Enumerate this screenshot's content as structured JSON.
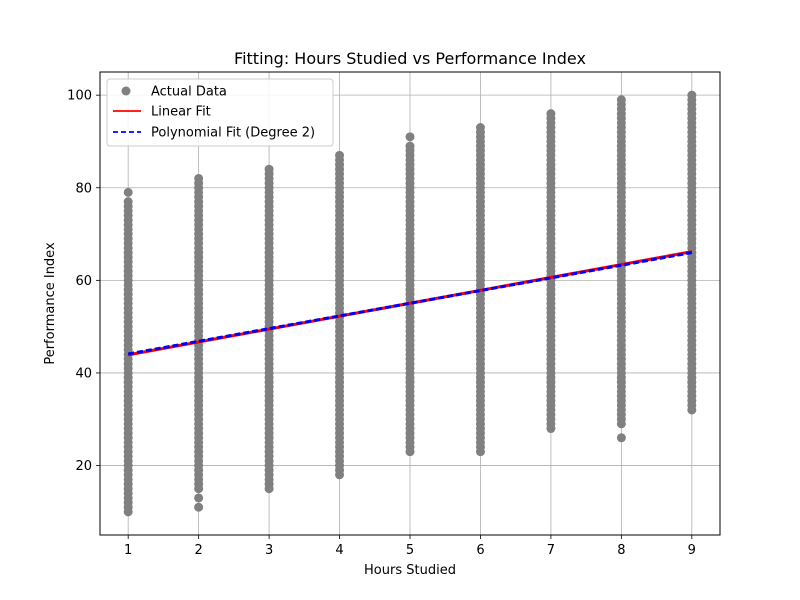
{
  "chart_data": {
    "type": "scatter",
    "title": "Fitting: Hours Studied vs Performance Index",
    "xlabel": "Hours Studied",
    "ylabel": "Performance Index",
    "xlim": [
      0.6,
      9.4
    ],
    "ylim": [
      5,
      105
    ],
    "x_ticks": [
      1,
      2,
      3,
      4,
      5,
      6,
      7,
      8,
      9
    ],
    "y_ticks": [
      20,
      40,
      60,
      80,
      100
    ],
    "grid": true,
    "legend_position": "top-left",
    "colors": {
      "points": "#808080",
      "linear": "#ff0000",
      "poly": "#0000ff",
      "grid": "#b0b0b0"
    },
    "series": [
      {
        "name": "Actual Data",
        "kind": "scatter-range",
        "columns": [
          {
            "x": 1,
            "y_min": 10,
            "y_max": 77,
            "outliers": [
              79
            ]
          },
          {
            "x": 2,
            "y_min": 15,
            "y_max": 82,
            "outliers": [
              11,
              13
            ]
          },
          {
            "x": 3,
            "y_min": 15,
            "y_max": 84,
            "outliers": []
          },
          {
            "x": 4,
            "y_min": 18,
            "y_max": 87,
            "outliers": []
          },
          {
            "x": 5,
            "y_min": 23,
            "y_max": 89,
            "outliers": [
              91
            ]
          },
          {
            "x": 6,
            "y_min": 23,
            "y_max": 93,
            "outliers": []
          },
          {
            "x": 7,
            "y_min": 28,
            "y_max": 96,
            "outliers": []
          },
          {
            "x": 8,
            "y_min": 29,
            "y_max": 99,
            "outliers": [
              26
            ]
          },
          {
            "x": 9,
            "y_min": 32,
            "y_max": 100,
            "outliers": []
          }
        ]
      },
      {
        "name": "Linear Fit",
        "kind": "line",
        "x": [
          1,
          9
        ],
        "y": [
          43.9,
          66.2
        ]
      },
      {
        "name": "Polynomial Fit (Degree 2)",
        "kind": "line-dashed",
        "x": [
          1,
          9
        ],
        "y": [
          44.1,
          66.0
        ]
      }
    ]
  }
}
